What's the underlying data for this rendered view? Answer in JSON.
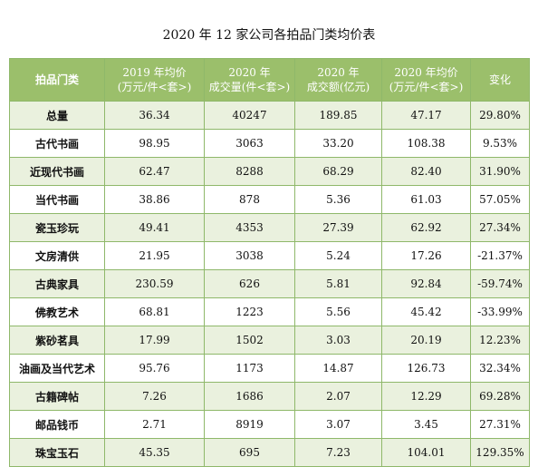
{
  "title": "2020 年 12 家公司各拍品门类均价表",
  "header": {
    "category": "拍品门类",
    "avg2019": [
      "2019 年均价",
      "(万元/件<套>)"
    ],
    "volume2020": [
      "2020 年",
      "成交量(件<套>)"
    ],
    "amount2020": [
      "2020 年",
      "成交额(亿元)"
    ],
    "avg2020": [
      "2020 年均价",
      "(万元/件<套>)"
    ],
    "change": "变化"
  },
  "rows": [
    {
      "category": "总量",
      "avg2019": "36.34",
      "volume2020": "40247",
      "amount2020": "189.85",
      "avg2020": "47.17",
      "change": "29.80%"
    },
    {
      "category": "古代书画",
      "avg2019": "98.95",
      "volume2020": "3063",
      "amount2020": "33.20",
      "avg2020": "108.38",
      "change": "9.53%"
    },
    {
      "category": "近现代书画",
      "avg2019": "62.47",
      "volume2020": "8288",
      "amount2020": "68.29",
      "avg2020": "82.40",
      "change": "31.90%"
    },
    {
      "category": "当代书画",
      "avg2019": "38.86",
      "volume2020": "878",
      "amount2020": "5.36",
      "avg2020": "61.03",
      "change": "57.05%"
    },
    {
      "category": "瓷玉珍玩",
      "avg2019": "49.41",
      "volume2020": "4353",
      "amount2020": "27.39",
      "avg2020": "62.92",
      "change": "27.34%"
    },
    {
      "category": "文房清供",
      "avg2019": "21.95",
      "volume2020": "3038",
      "amount2020": "5.24",
      "avg2020": "17.26",
      "change": "-21.37%"
    },
    {
      "category": "古典家具",
      "avg2019": "230.59",
      "volume2020": "626",
      "amount2020": "5.81",
      "avg2020": "92.84",
      "change": "-59.74%"
    },
    {
      "category": "佛教艺术",
      "avg2019": "68.81",
      "volume2020": "1223",
      "amount2020": "5.56",
      "avg2020": "45.42",
      "change": "-33.99%"
    },
    {
      "category": "紫砂茗具",
      "avg2019": "17.99",
      "volume2020": "1502",
      "amount2020": "3.03",
      "avg2020": "20.19",
      "change": "12.23%"
    },
    {
      "category": "油画及当代艺术",
      "avg2019": "95.76",
      "volume2020": "1173",
      "amount2020": "14.87",
      "avg2020": "126.73",
      "change": "32.34%"
    },
    {
      "category": "古籍碑帖",
      "avg2019": "7.26",
      "volume2020": "1686",
      "amount2020": "2.07",
      "avg2020": "12.29",
      "change": "69.28%"
    },
    {
      "category": "邮品钱币",
      "avg2019": "2.71",
      "volume2020": "8919",
      "amount2020": "3.07",
      "avg2020": "3.45",
      "change": "27.31%"
    },
    {
      "category": "珠宝玉石",
      "avg2019": "45.35",
      "volume2020": "695",
      "amount2020": "7.23",
      "avg2020": "104.01",
      "change": "129.35%"
    }
  ],
  "colors": {
    "header_bg": "#9bbf6b",
    "stripe_bg": "#eaf1de",
    "border": "#8fb86a"
  }
}
